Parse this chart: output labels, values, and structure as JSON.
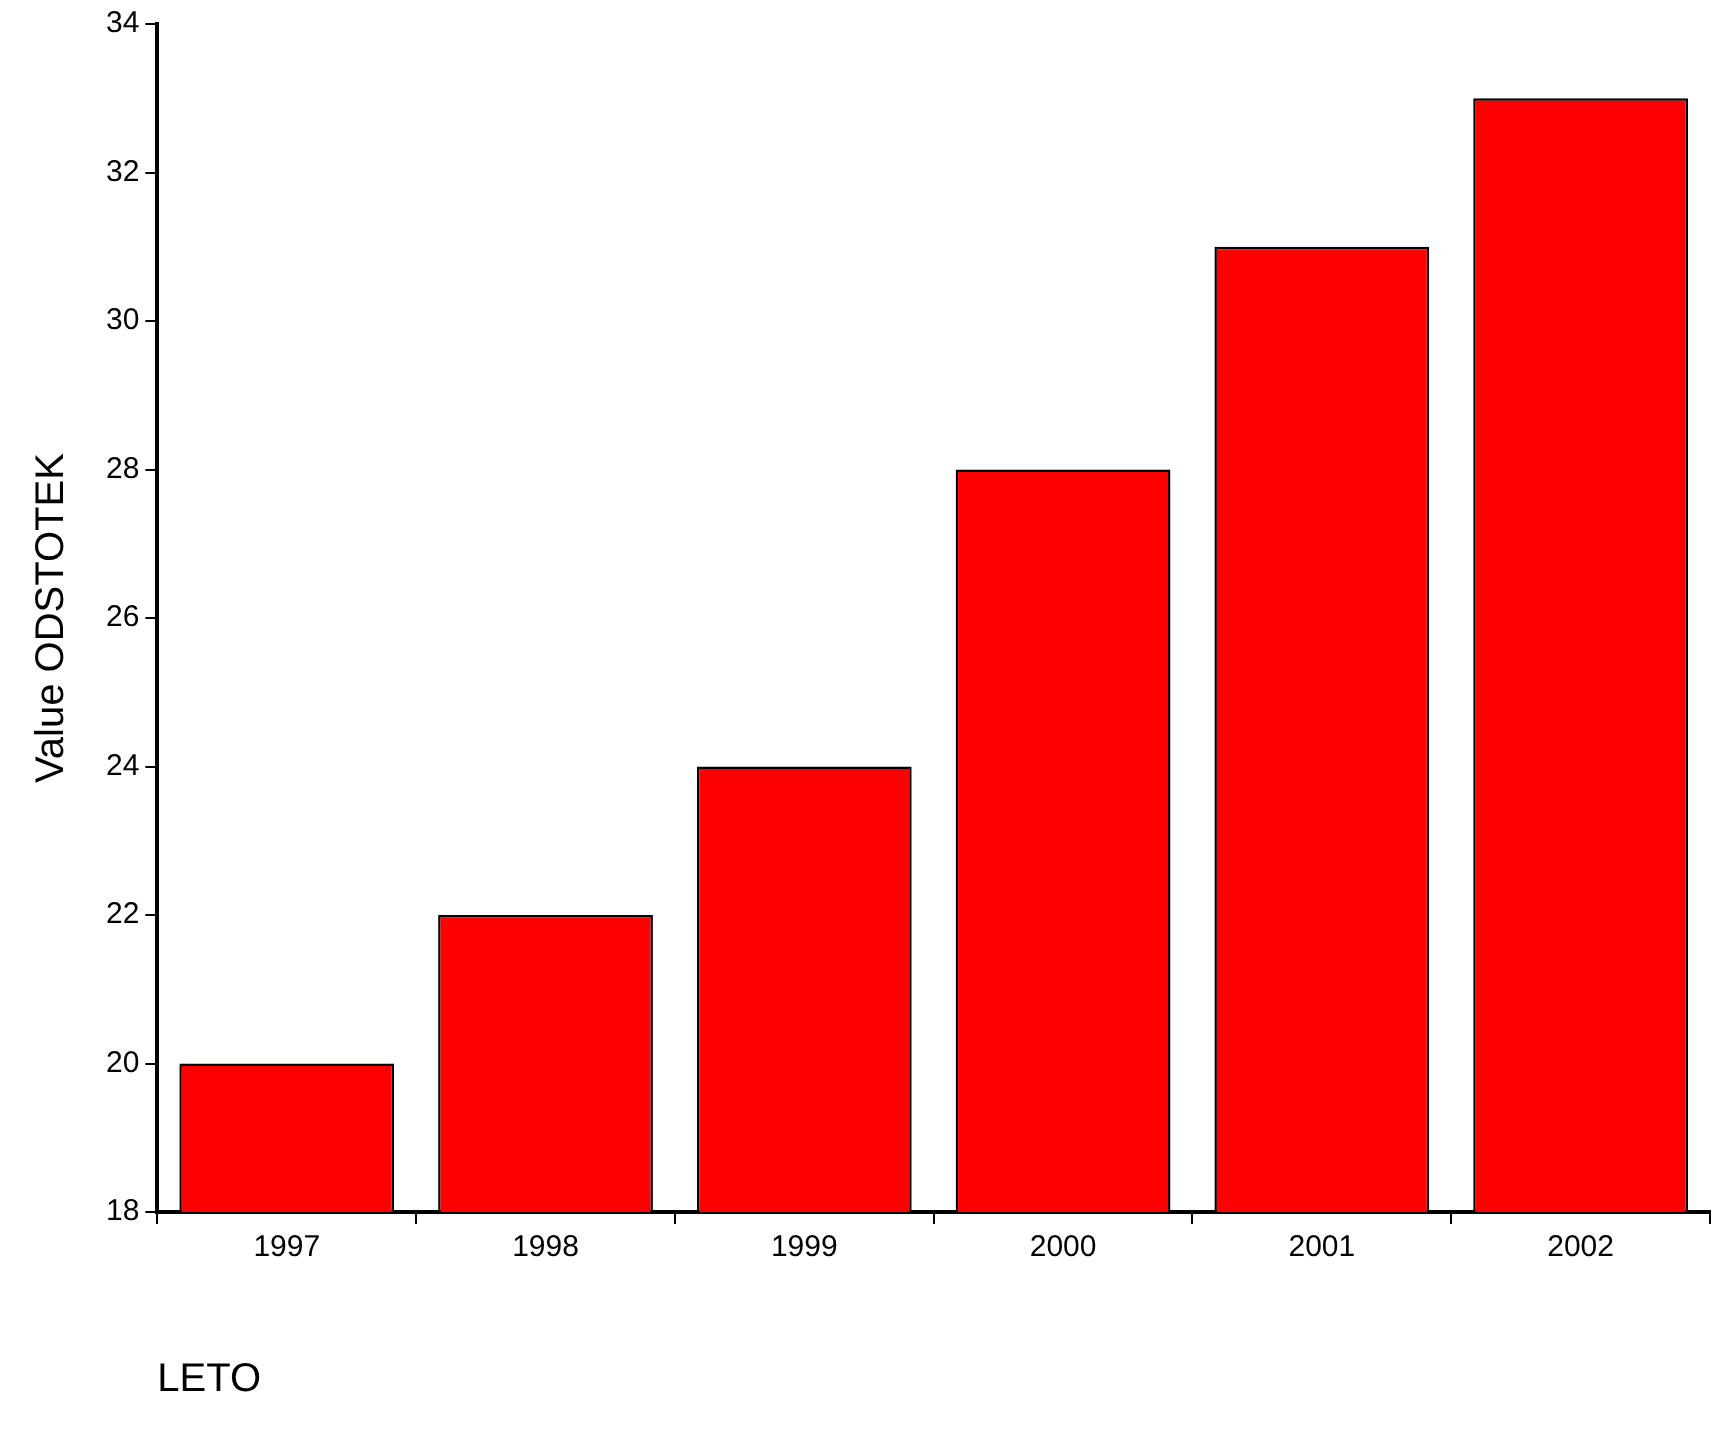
{
  "chart_data": {
    "type": "bar",
    "xlabel": "LETO",
    "ylabel": "Value ODSTOTEK",
    "categories": [
      "1997",
      "1998",
      "1999",
      "2000",
      "2001",
      "2002"
    ],
    "values": [
      20,
      22,
      24,
      28,
      31,
      33
    ],
    "color": "#ff0000",
    "ylim": [
      18,
      34
    ],
    "yticks": [
      18,
      20,
      22,
      24,
      26,
      28,
      30,
      32,
      34
    ],
    "grid": false,
    "legend": false
  }
}
